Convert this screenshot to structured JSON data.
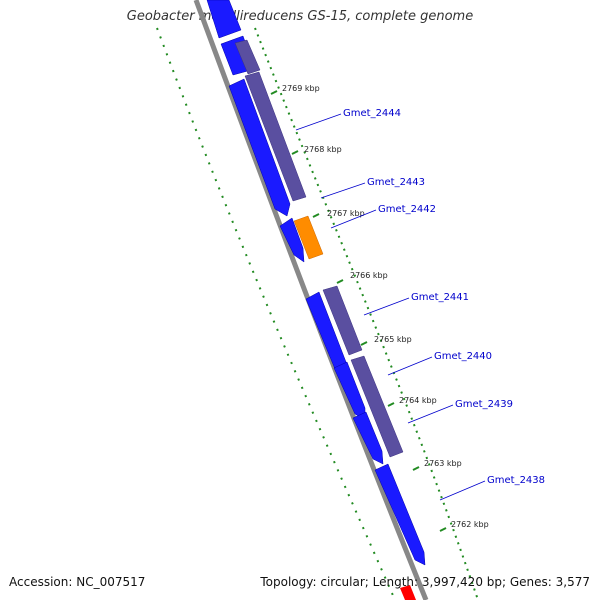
{
  "title": "Geobacter metallireducens GS-15, complete genome",
  "footer": {
    "accession": "Accession: NC_007517",
    "summary": "Topology: circular; Length: 3,997,420 bp; Genes: 3,577"
  },
  "colors": {
    "forward_gene": "#1a1aff",
    "reverse_gene": "#5a4fa0",
    "highlight_gene": "#ff8c00",
    "backbone": "#888888",
    "ticks": "#228b22",
    "label_line": "#0000cc",
    "edge_marker": "#ff0000"
  },
  "ticks": [
    {
      "label": "2769 kbp"
    },
    {
      "label": "2768 kbp"
    },
    {
      "label": "2767 kbp"
    },
    {
      "label": "2766 kbp"
    },
    {
      "label": "2765 kbp"
    },
    {
      "label": "2764 kbp"
    },
    {
      "label": "2763 kbp"
    },
    {
      "label": "2762 kbp"
    }
  ],
  "gene_labels": [
    {
      "name": "Gmet_2444"
    },
    {
      "name": "Gmet_2443"
    },
    {
      "name": "Gmet_2442"
    },
    {
      "name": "Gmet_2441"
    },
    {
      "name": "Gmet_2440"
    },
    {
      "name": "Gmet_2439"
    },
    {
      "name": "Gmet_2438"
    }
  ]
}
